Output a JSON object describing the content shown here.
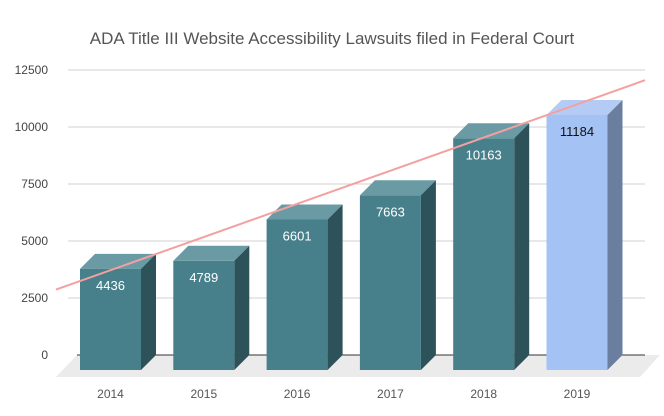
{
  "chart_data": {
    "type": "bar",
    "title": "ADA Title III Website Accessibility Lawsuits filed in Federal Court",
    "categories": [
      "2014",
      "2015",
      "2016",
      "2017",
      "2018",
      "2019"
    ],
    "values": [
      4436,
      4789,
      6601,
      7663,
      10163,
      11184
    ],
    "data_labels": [
      "4436",
      "4789",
      "6601",
      "7663",
      "10163",
      "11184"
    ],
    "ylim": [
      0,
      12500
    ],
    "y_ticks": [
      "0",
      "2500",
      "5000",
      "7500",
      "10000",
      "12500"
    ],
    "grid": true,
    "style": "3d",
    "trendline": {
      "type": "linear",
      "color": "#f4a0a0"
    },
    "colors": {
      "bar": "#47808b",
      "bar_top": "#6a9ba4",
      "bar_side": "#2d525a",
      "highlight": "#a4c2f4",
      "highlight_top": "#b4ccf5",
      "highlight_side": "#6a7fa0"
    },
    "highlighted_category": "2019"
  }
}
